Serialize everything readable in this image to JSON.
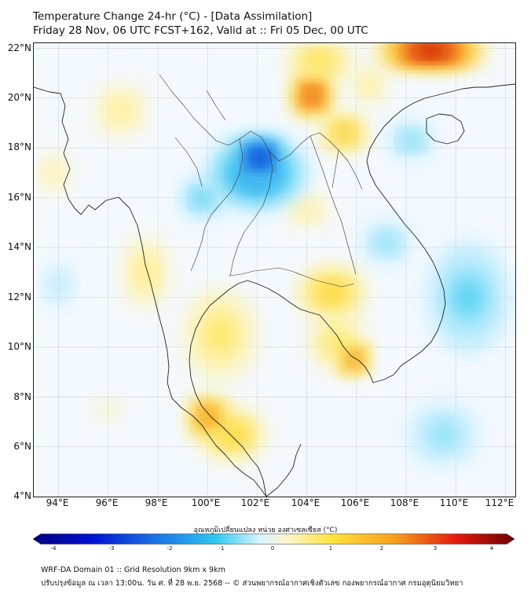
{
  "header": {
    "line1": "Temperature Change 24-hr (°C) - [Data Assimilation]",
    "line2": "Friday 28 Nov, 06 UTC FCST+162, Valid at :: Fri 05 Dec, 00 UTC"
  },
  "map": {
    "lat_labels": [
      "22°N",
      "20°N",
      "18°N",
      "16°N",
      "14°N",
      "12°N",
      "10°N",
      "8°N",
      "6°N",
      "4°N"
    ],
    "lon_labels": [
      "94°E",
      "96°E",
      "98°E",
      "100°E",
      "102°E",
      "104°E",
      "106°E",
      "108°E",
      "110°E",
      "112°E"
    ],
    "lat_range": [
      4,
      22.2
    ],
    "lon_range": [
      93,
      112.4
    ],
    "anomalies": [
      {
        "name": "cold core Laos/NE Thailand",
        "lon": 102.1,
        "lat": 17.6,
        "value": -3.2,
        "rlon": 0.8,
        "rlat": 0.7
      },
      {
        "name": "cool northern Thailand",
        "lon": 102.0,
        "lat": 17.0,
        "value": -1.6,
        "rlon": 2.2,
        "rlat": 1.6
      },
      {
        "name": "cool west Thailand",
        "lon": 99.8,
        "lat": 16.0,
        "value": -1.1,
        "rlon": 1.0,
        "rlat": 0.9
      },
      {
        "name": "cool gulf of Tonkin",
        "lon": 108.2,
        "lat": 18.3,
        "value": -0.9,
        "rlon": 1.2,
        "rlat": 1.0
      },
      {
        "name": "cool south china sea",
        "lon": 110.5,
        "lat": 12.0,
        "value": -0.9,
        "rlon": 2.2,
        "rlat": 3.0
      },
      {
        "name": "cool andaman west",
        "lon": 94.0,
        "lat": 12.5,
        "value": -0.5,
        "rlon": 1.5,
        "rlat": 2.5
      },
      {
        "name": "cool central vietnam coast",
        "lon": 107.2,
        "lat": 14.2,
        "value": -0.8,
        "rlon": 1.3,
        "rlat": 1.2
      },
      {
        "name": "cool south sea",
        "lon": 109.5,
        "lat": 6.5,
        "value": -0.7,
        "rlon": 2.0,
        "rlat": 1.8
      },
      {
        "name": "warm northern Vietnam",
        "lon": 104.2,
        "lat": 20.1,
        "value": 3.0,
        "rlon": 0.8,
        "rlat": 0.8
      },
      {
        "name": "warm gulf of Tonkin north",
        "lon": 105.5,
        "lat": 18.6,
        "value": 1.6,
        "rlon": 1.0,
        "rlat": 0.8
      },
      {
        "name": "warm south china",
        "lon": 109.0,
        "lat": 21.9,
        "value": 3.5,
        "rlon": 2.2,
        "rlat": 0.7
      },
      {
        "name": "warm Yunnan",
        "lon": 104.5,
        "lat": 21.5,
        "value": 1.2,
        "rlon": 1.6,
        "rlat": 0.9
      },
      {
        "name": "warm Mekong delta",
        "lon": 105.9,
        "lat": 9.5,
        "value": 2.6,
        "rlon": 0.6,
        "rlat": 0.6
      },
      {
        "name": "warm Cambodia",
        "lon": 105.0,
        "lat": 12.2,
        "value": 1.4,
        "rlon": 1.6,
        "rlat": 1.2
      },
      {
        "name": "warm Mekong surround",
        "lon": 105.2,
        "lat": 10.2,
        "value": 1.0,
        "rlon": 1.5,
        "rlat": 1.5
      },
      {
        "name": "warm southern Thailand",
        "lon": 100.0,
        "lat": 7.2,
        "value": 2.5,
        "rlon": 0.8,
        "rlat": 0.8
      },
      {
        "name": "warm southern peninsula",
        "lon": 101.0,
        "lat": 6.5,
        "value": 1.4,
        "rlon": 1.5,
        "rlat": 1.2
      },
      {
        "name": "warm gulf of Thailand",
        "lon": 100.5,
        "lat": 10.5,
        "value": 0.9,
        "rlon": 2.0,
        "rlat": 2.5
      },
      {
        "name": "warm Myanmar south",
        "lon": 97.5,
        "lat": 13.0,
        "value": 0.8,
        "rlon": 1.3,
        "rlat": 2.0
      },
      {
        "name": "warm Myanmar north",
        "lon": 96.5,
        "lat": 19.5,
        "value": 0.7,
        "rlon": 1.5,
        "rlat": 1.5
      },
      {
        "name": "warm Bay of Bengal",
        "lon": 93.8,
        "lat": 17.0,
        "value": 0.6,
        "rlon": 1.0,
        "rlat": 1.2
      },
      {
        "name": "warm Andaman",
        "lon": 96.0,
        "lat": 7.5,
        "value": 0.5,
        "rlon": 1.5,
        "rlat": 1.2
      },
      {
        "name": "warm Laos south",
        "lon": 104.0,
        "lat": 15.5,
        "value": 0.7,
        "rlon": 1.2,
        "rlat": 1.0
      },
      {
        "name": "warm Hainan west",
        "lon": 106.5,
        "lat": 20.5,
        "value": 0.8,
        "rlon": 1.0,
        "rlat": 1.0
      }
    ],
    "place_lines_note": "Land outline"
  },
  "colorbar": {
    "title": "อุณหภูมิเปลี่ยนแปลง หน่วย องศาเซลเซียส (°C)",
    "ticks": [
      "-4",
      "-3",
      "-2",
      "-1",
      "0",
      "1",
      "2",
      "3",
      "4"
    ],
    "min": -4,
    "max": 4
  },
  "footer": {
    "line1": "WRF-DA Domain 01 :: Grid Resolution 9km x 9km",
    "line2": "ปรับปรุงข้อมูล ณ เวลา 13:00น. วัน ศ. ที่ 28 พ.ย. 2568 -- © ส่วนพยากรณ์อากาศเชิงตัวเลข กองพยากรณ์อากาศ กรมอุตุนิยมวิทยา"
  }
}
